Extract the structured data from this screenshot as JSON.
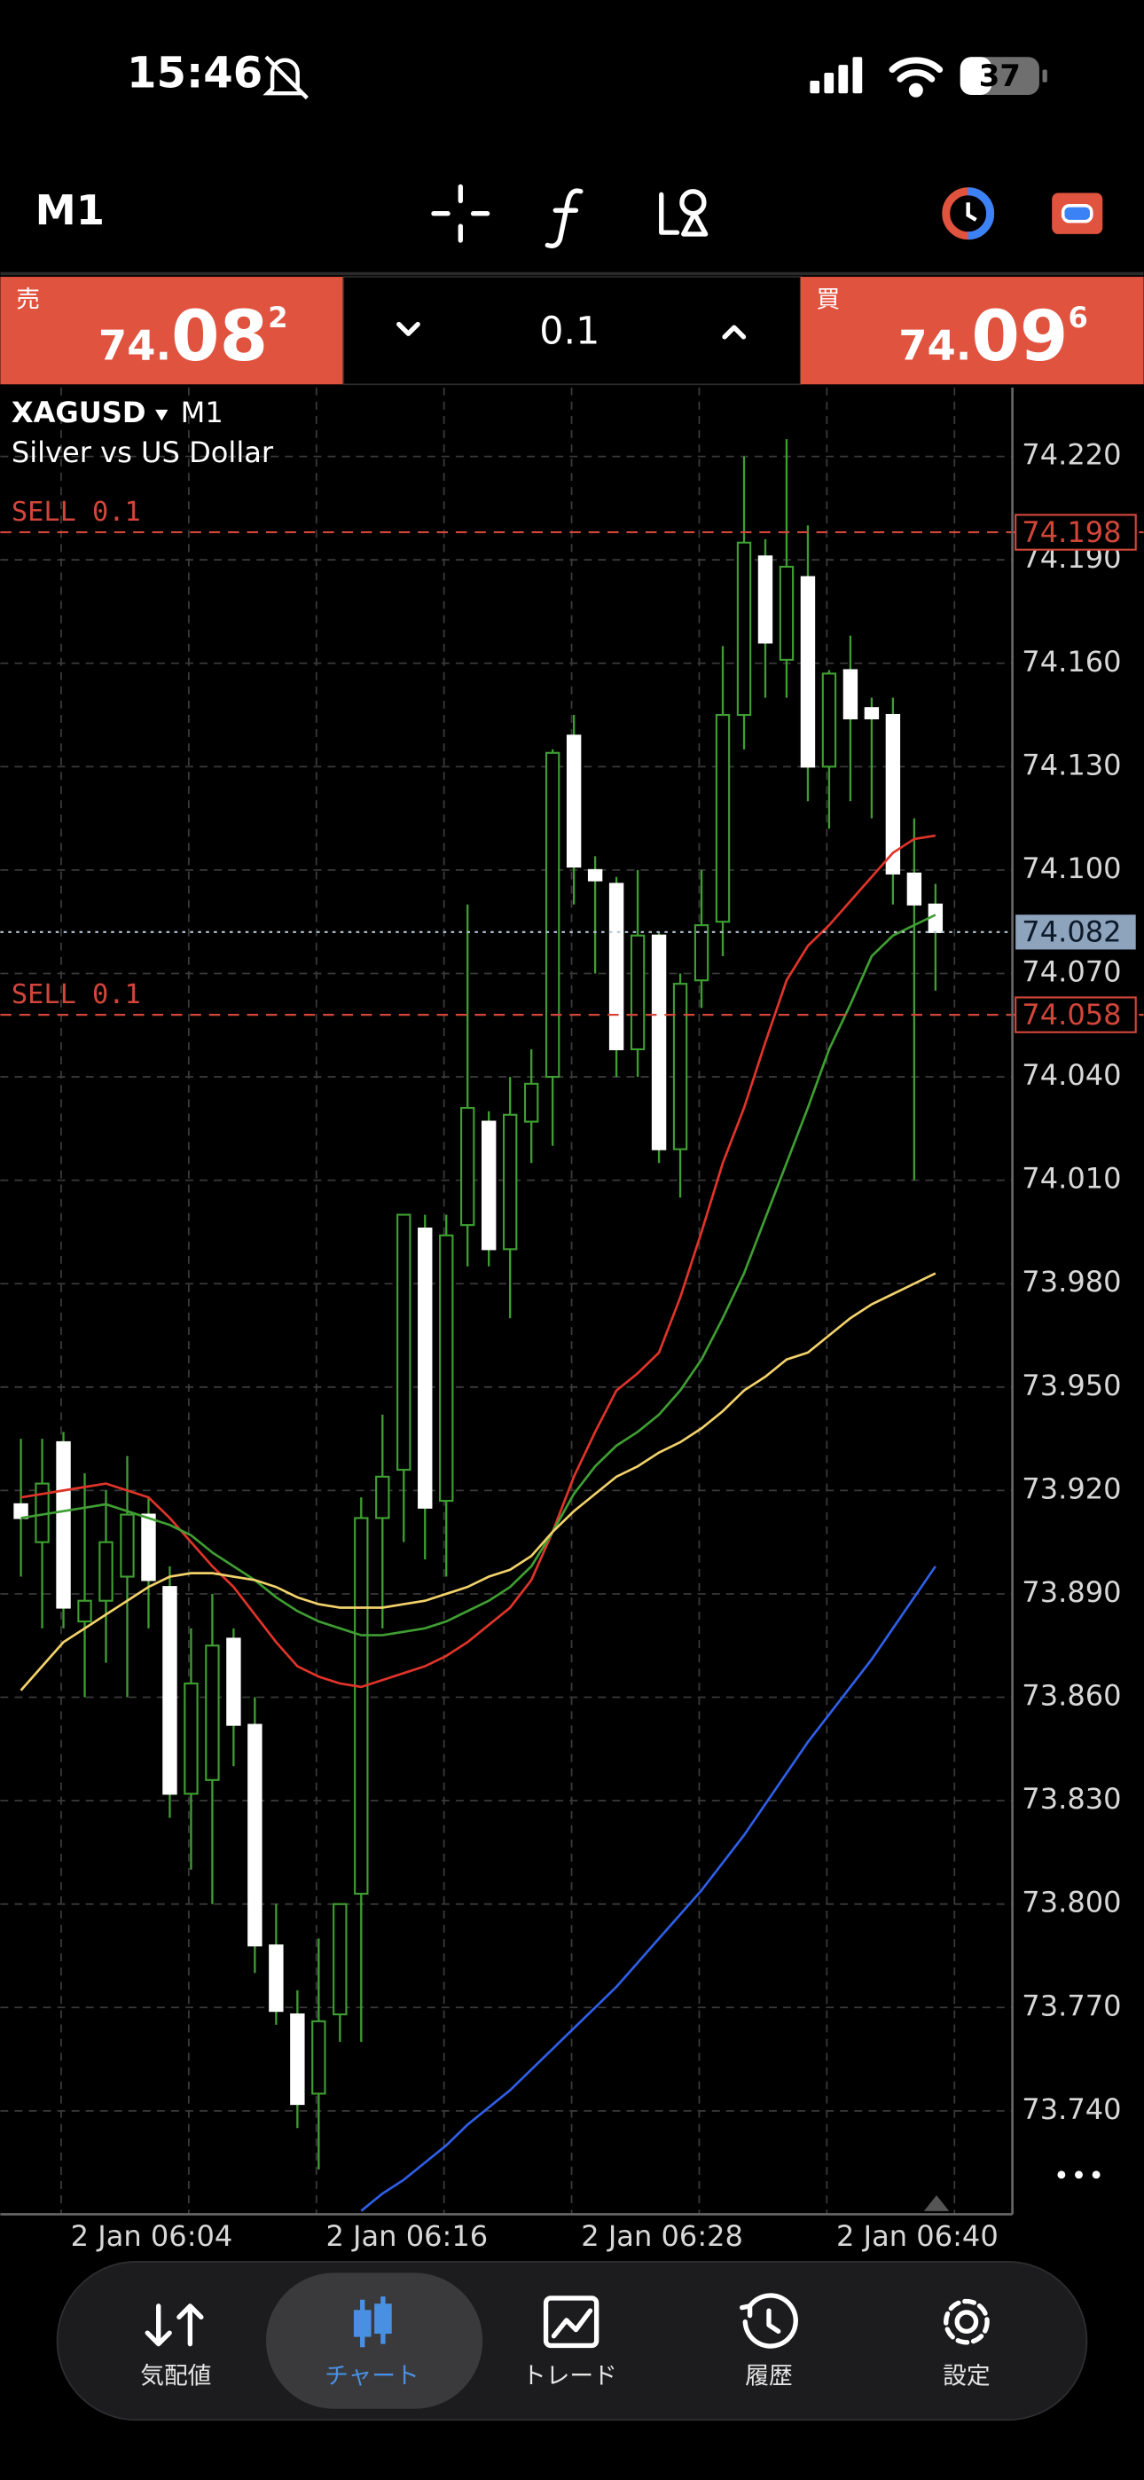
{
  "status_bar": {
    "time": "15:46",
    "battery": "37"
  },
  "toolbar": {
    "timeframe": "M1"
  },
  "trade_panel": {
    "sell_label": "売",
    "sell_price": [
      "74.",
      "08",
      "2"
    ],
    "volume": "0.1",
    "buy_label": "買",
    "buy_price": [
      "74.",
      "09",
      "6"
    ]
  },
  "chart_data": {
    "type": "candlestick",
    "symbol": "XAGUSD",
    "timeframe": "M1",
    "subtitle": "Silver vs US Dollar",
    "x": [
      "2 Jan 06:03",
      "2 Jan 06:04",
      "2 Jan 06:05",
      "2 Jan 06:06",
      "2 Jan 06:07",
      "2 Jan 06:08",
      "2 Jan 06:09",
      "2 Jan 06:10",
      "2 Jan 06:11",
      "2 Jan 06:12",
      "2 Jan 06:13",
      "2 Jan 06:14",
      "2 Jan 06:15",
      "2 Jan 06:16",
      "2 Jan 06:17",
      "2 Jan 06:18",
      "2 Jan 06:19",
      "2 Jan 06:20",
      "2 Jan 06:21",
      "2 Jan 06:22",
      "2 Jan 06:23",
      "2 Jan 06:24",
      "2 Jan 06:25",
      "2 Jan 06:26",
      "2 Jan 06:27",
      "2 Jan 06:28",
      "2 Jan 06:29",
      "2 Jan 06:30",
      "2 Jan 06:31",
      "2 Jan 06:32",
      "2 Jan 06:33",
      "2 Jan 06:34",
      "2 Jan 06:35",
      "2 Jan 06:36",
      "2 Jan 06:37",
      "2 Jan 06:38",
      "2 Jan 06:39",
      "2 Jan 06:40",
      "2 Jan 06:41",
      "2 Jan 06:42",
      "2 Jan 06:43",
      "2 Jan 06:44",
      "2 Jan 06:45",
      "2 Jan 06:46"
    ],
    "open": [
      73.916,
      73.905,
      73.934,
      73.882,
      73.888,
      73.895,
      73.913,
      73.892,
      73.832,
      73.836,
      73.877,
      73.852,
      73.788,
      73.768,
      73.745,
      73.768,
      73.803,
      73.912,
      73.926,
      73.996,
      73.917,
      73.997,
      74.027,
      73.99,
      74.027,
      74.04,
      74.139,
      74.1,
      74.096,
      74.048,
      74.081,
      74.019,
      74.068,
      74.085,
      74.145,
      74.191,
      74.161,
      74.185,
      74.13,
      74.158,
      74.147,
      74.145,
      74.099,
      74.09
    ],
    "high": [
      73.935,
      73.935,
      73.937,
      73.925,
      73.92,
      73.93,
      73.918,
      73.898,
      73.88,
      73.89,
      73.88,
      73.86,
      73.8,
      73.775,
      73.79,
      73.8,
      73.918,
      73.942,
      74.0,
      74.0,
      74.0,
      74.09,
      74.03,
      74.04,
      74.048,
      74.135,
      74.145,
      74.104,
      74.098,
      74.1,
      74.082,
      74.07,
      74.1,
      74.165,
      74.22,
      74.196,
      74.225,
      74.2,
      74.158,
      74.168,
      74.15,
      74.15,
      74.115,
      74.096
    ],
    "low": [
      73.895,
      73.88,
      73.88,
      73.86,
      73.87,
      73.86,
      73.88,
      73.825,
      73.81,
      73.8,
      73.84,
      73.78,
      73.765,
      73.735,
      73.723,
      73.76,
      73.76,
      73.88,
      73.905,
      73.9,
      73.895,
      73.985,
      73.985,
      73.97,
      74.015,
      74.02,
      74.09,
      74.07,
      74.04,
      74.04,
      74.015,
      74.005,
      74.06,
      74.075,
      74.135,
      74.15,
      74.15,
      74.12,
      74.112,
      74.12,
      74.115,
      74.09,
      74.01,
      74.065
    ],
    "close": [
      73.912,
      73.922,
      73.886,
      73.888,
      73.905,
      73.913,
      73.894,
      73.832,
      73.864,
      73.875,
      73.852,
      73.788,
      73.769,
      73.742,
      73.766,
      73.8,
      73.912,
      73.924,
      74.0,
      73.915,
      73.994,
      74.031,
      73.99,
      74.029,
      74.038,
      74.134,
      74.101,
      74.097,
      74.048,
      74.081,
      74.019,
      74.067,
      74.084,
      74.145,
      74.195,
      74.166,
      74.188,
      74.13,
      74.157,
      74.144,
      74.144,
      74.099,
      74.09,
      74.082
    ],
    "up_color": "#3f9e32",
    "down_color": "#ffffff",
    "series": [
      {
        "color": "#e0342a",
        "values": [
          73.918,
          73.919,
          73.92,
          73.921,
          73.922,
          73.92,
          73.918,
          73.912,
          73.905,
          73.898,
          73.892,
          73.884,
          73.876,
          73.869,
          73.866,
          73.864,
          73.863,
          73.865,
          73.867,
          73.869,
          73.872,
          73.876,
          73.881,
          73.886,
          73.894,
          73.908,
          73.924,
          73.937,
          73.949,
          73.954,
          73.96,
          73.976,
          73.995,
          74.015,
          74.031,
          74.05,
          74.068,
          74.078,
          74.084,
          74.091,
          74.098,
          74.105,
          74.109,
          74.11
        ]
      },
      {
        "color": "#3f9e32",
        "values": [
          73.912,
          73.913,
          73.914,
          73.915,
          73.916,
          73.914,
          73.912,
          73.91,
          73.907,
          73.902,
          73.898,
          73.894,
          73.889,
          73.885,
          73.882,
          73.88,
          73.878,
          73.878,
          73.879,
          73.88,
          73.882,
          73.885,
          73.888,
          73.892,
          73.898,
          73.908,
          73.919,
          73.927,
          73.933,
          73.937,
          73.942,
          73.949,
          73.958,
          73.97,
          73.983,
          73.999,
          74.015,
          74.031,
          74.048,
          74.061,
          74.075,
          74.081,
          74.084,
          74.087
        ]
      },
      {
        "color": "#f2d26b",
        "values": [
          73.862,
          73.869,
          73.876,
          73.88,
          73.884,
          73.888,
          73.892,
          73.895,
          73.896,
          73.896,
          73.895,
          73.894,
          73.892,
          73.889,
          73.887,
          73.886,
          73.886,
          73.886,
          73.887,
          73.888,
          73.89,
          73.892,
          73.895,
          73.897,
          73.901,
          73.908,
          73.914,
          73.919,
          73.924,
          73.927,
          73.931,
          73.934,
          73.938,
          73.943,
          73.949,
          73.953,
          73.958,
          73.96,
          73.965,
          73.97,
          73.974,
          73.977,
          73.98,
          73.983
        ]
      },
      {
        "color": "#2f5fe8",
        "values": [
          null,
          null,
          null,
          null,
          null,
          null,
          null,
          null,
          null,
          null,
          null,
          null,
          null,
          null,
          null,
          null,
          73.711,
          73.716,
          73.72,
          73.725,
          73.73,
          73.736,
          73.741,
          73.746,
          73.752,
          73.758,
          73.764,
          73.77,
          73.776,
          73.783,
          73.79,
          73.797,
          73.804,
          73.812,
          73.82,
          73.829,
          73.838,
          73.847,
          73.855,
          73.863,
          73.871,
          73.88,
          73.889,
          73.898
        ]
      }
    ],
    "ylim": [
      73.71,
      74.24
    ],
    "yticks": [
      {
        "value": 73.74,
        "label": "73.740"
      },
      {
        "value": 73.77,
        "label": "73.770"
      },
      {
        "value": 73.8,
        "label": "73.800"
      },
      {
        "value": 73.83,
        "label": "73.830"
      },
      {
        "value": 73.86,
        "label": "73.860"
      },
      {
        "value": 73.89,
        "label": "73.890"
      },
      {
        "value": 73.92,
        "label": "73.920"
      },
      {
        "value": 73.95,
        "label": "73.950"
      },
      {
        "value": 73.98,
        "label": "73.980"
      },
      {
        "value": 74.01,
        "label": "74.010"
      },
      {
        "value": 74.04,
        "label": "74.040"
      },
      {
        "value": 74.07,
        "label": "74.070"
      },
      {
        "value": 74.1,
        "label": "74.100"
      },
      {
        "value": 74.13,
        "label": "74.130"
      },
      {
        "value": 74.16,
        "label": "74.160"
      },
      {
        "value": 74.19,
        "label": "74.190"
      },
      {
        "value": 74.22,
        "label": "74.220"
      }
    ],
    "xticks": [
      "2 Jan 06:04",
      "2 Jan 06:16",
      "2 Jan 06:28",
      "2 Jan 06:40"
    ],
    "grid": true,
    "orders": [
      {
        "label": "SELL 0.1",
        "price": {
          "value": 74.198,
          "label": "74.198"
        }
      },
      {
        "label": "SELL 0.1",
        "price": {
          "value": 74.058,
          "label": "74.058"
        }
      }
    ],
    "current_price": {
      "value": 74.082,
      "label": "74.082"
    }
  },
  "tab_bar": {
    "tabs": [
      {
        "label": "気配値"
      },
      {
        "label": "チャート",
        "active": true
      },
      {
        "label": "トレード"
      },
      {
        "label": "履歴"
      },
      {
        "label": "設定"
      }
    ]
  }
}
